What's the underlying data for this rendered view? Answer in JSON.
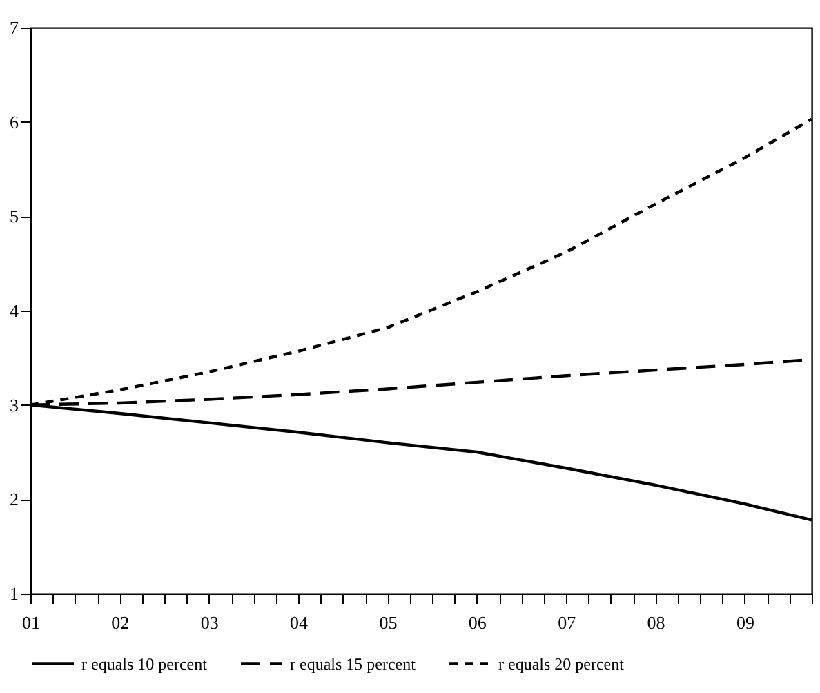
{
  "chart_data": {
    "type": "line",
    "x": [
      1,
      2,
      3,
      4,
      5,
      6,
      7,
      8,
      9,
      9.75
    ],
    "series": [
      {
        "name": "r equals 10 percent",
        "color": "#000000",
        "line_style": "solid",
        "values": [
          3.0,
          2.91,
          2.81,
          2.71,
          2.6,
          2.5,
          2.33,
          2.15,
          1.95,
          1.78
        ]
      },
      {
        "name": "r equals 15 percent",
        "color": "#000000",
        "line_style": "dashed",
        "values": [
          3.0,
          3.02,
          3.06,
          3.11,
          3.17,
          3.24,
          3.31,
          3.37,
          3.43,
          3.48
        ]
      },
      {
        "name": "r equals 20 percent",
        "color": "#000000",
        "line_style": "dotted",
        "values": [
          3.0,
          3.16,
          3.35,
          3.57,
          3.82,
          4.2,
          4.62,
          5.13,
          5.62,
          6.03
        ]
      }
    ],
    "xlim": [
      1,
      9.75
    ],
    "xticks": [
      {
        "value": 1,
        "label": "01"
      },
      {
        "value": 1.25,
        "label": null
      },
      {
        "value": 1.5,
        "label": null
      },
      {
        "value": 1.75,
        "label": null
      },
      {
        "value": 2,
        "label": "02"
      },
      {
        "value": 2.25,
        "label": null
      },
      {
        "value": 2.5,
        "label": null
      },
      {
        "value": 2.75,
        "label": null
      },
      {
        "value": 3,
        "label": "03"
      },
      {
        "value": 3.25,
        "label": null
      },
      {
        "value": 3.5,
        "label": null
      },
      {
        "value": 3.75,
        "label": null
      },
      {
        "value": 4,
        "label": "04"
      },
      {
        "value": 4.25,
        "label": null
      },
      {
        "value": 4.5,
        "label": null
      },
      {
        "value": 4.75,
        "label": null
      },
      {
        "value": 5,
        "label": "05"
      },
      {
        "value": 5.25,
        "label": null
      },
      {
        "value": 5.5,
        "label": null
      },
      {
        "value": 5.75,
        "label": null
      },
      {
        "value": 6,
        "label": "06"
      },
      {
        "value": 6.25,
        "label": null
      },
      {
        "value": 6.5,
        "label": null
      },
      {
        "value": 6.75,
        "label": null
      },
      {
        "value": 7,
        "label": "07"
      },
      {
        "value": 7.25,
        "label": null
      },
      {
        "value": 7.5,
        "label": null
      },
      {
        "value": 7.75,
        "label": null
      },
      {
        "value": 8,
        "label": "08"
      },
      {
        "value": 8.25,
        "label": null
      },
      {
        "value": 8.5,
        "label": null
      },
      {
        "value": 8.75,
        "label": null
      },
      {
        "value": 9,
        "label": "09"
      },
      {
        "value": 9.25,
        "label": null
      },
      {
        "value": 9.5,
        "label": null
      },
      {
        "value": 9.75,
        "label": null
      }
    ],
    "ylim": [
      1,
      7
    ],
    "yticks": [
      1,
      2,
      3,
      4,
      5,
      6,
      7
    ],
    "grid": false,
    "legend": "bottom",
    "marker": "none"
  }
}
